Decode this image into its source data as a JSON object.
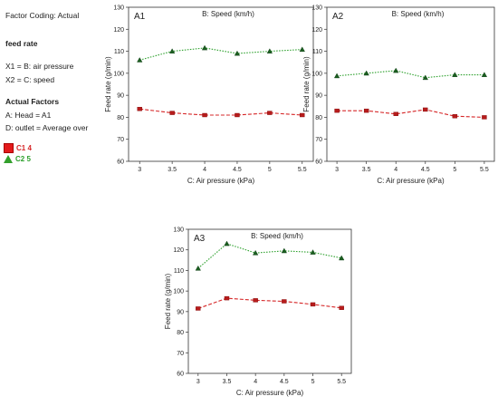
{
  "info": {
    "factor_coding": "Factor Coding: Actual",
    "response": "feed rate",
    "x1": "X1 = B: air pressure",
    "x2": "X2 = C: speed",
    "actual_factors": "Actual Factors",
    "head": "A: Head = A1",
    "outlet": "D: outlet   = Average over"
  },
  "legend": [
    {
      "label": "C1 4",
      "color": "#e31a1c",
      "marker": "square"
    },
    {
      "label": "C2 5",
      "color": "#33a02c",
      "marker": "triangle"
    }
  ],
  "chart_data": [
    {
      "type": "line",
      "panel_label": "A1",
      "title": "B: Speed (km/h)",
      "xlabel": "C: Air pressure (kPa)",
      "ylabel": "Feed rate (g/min)",
      "x": [
        3,
        3.5,
        4,
        4.5,
        5,
        5.5
      ],
      "x_ticks": [
        "3",
        "3.5",
        "4",
        "4.5",
        "5",
        "5.5"
      ],
      "ylim": [
        60,
        130
      ],
      "y_ticks": [
        60,
        70,
        80,
        90,
        100,
        110,
        120,
        130
      ],
      "series": [
        {
          "name": "C1 4",
          "color": "#d62728",
          "marker": "square",
          "values": [
            83.8,
            82.0,
            81.0,
            81.0,
            82.0,
            81.0
          ]
        },
        {
          "name": "C2 5",
          "color": "#2ca02c",
          "marker": "triangle",
          "values": [
            106.0,
            110.0,
            111.5,
            109.0,
            110.0,
            110.8
          ]
        }
      ]
    },
    {
      "type": "line",
      "panel_label": "A2",
      "title": "B: Speed (km/h)",
      "xlabel": "C: Air pressure (kPa)",
      "ylabel": "Feed rate (g/min)",
      "x": [
        3,
        3.5,
        4,
        4.5,
        5,
        5.5
      ],
      "x_ticks": [
        "3",
        "3.5",
        "4",
        "4.5",
        "5",
        "5.5"
      ],
      "ylim": [
        60,
        130
      ],
      "y_ticks": [
        60,
        70,
        80,
        90,
        100,
        110,
        120,
        130
      ],
      "series": [
        {
          "name": "C1 4",
          "color": "#d62728",
          "marker": "square",
          "values": [
            83.0,
            83.0,
            81.5,
            83.5,
            80.5,
            80.0
          ]
        },
        {
          "name": "C2 5",
          "color": "#2ca02c",
          "marker": "triangle",
          "values": [
            98.8,
            100.0,
            101.2,
            98.0,
            99.3,
            99.3
          ]
        }
      ]
    },
    {
      "type": "line",
      "panel_label": "A3",
      "title": "B: Speed (km/h)",
      "xlabel": "C: Air pressure (kPa)",
      "ylabel": "Feed rate (g/min)",
      "x": [
        3,
        3.5,
        4,
        4.5,
        5,
        5.5
      ],
      "x_ticks": [
        "3",
        "3.5",
        "4",
        "4.5",
        "5",
        "5.5"
      ],
      "ylim": [
        60,
        130
      ],
      "y_ticks": [
        60,
        70,
        80,
        90,
        100,
        110,
        120,
        130
      ],
      "series": [
        {
          "name": "C1 4",
          "color": "#d62728",
          "marker": "square",
          "values": [
            91.5,
            96.5,
            95.5,
            95.0,
            93.5,
            91.8
          ]
        },
        {
          "name": "C2 5",
          "color": "#2ca02c",
          "marker": "triangle",
          "values": [
            111.0,
            123.0,
            118.5,
            119.5,
            118.8,
            116.0
          ]
        }
      ]
    }
  ]
}
